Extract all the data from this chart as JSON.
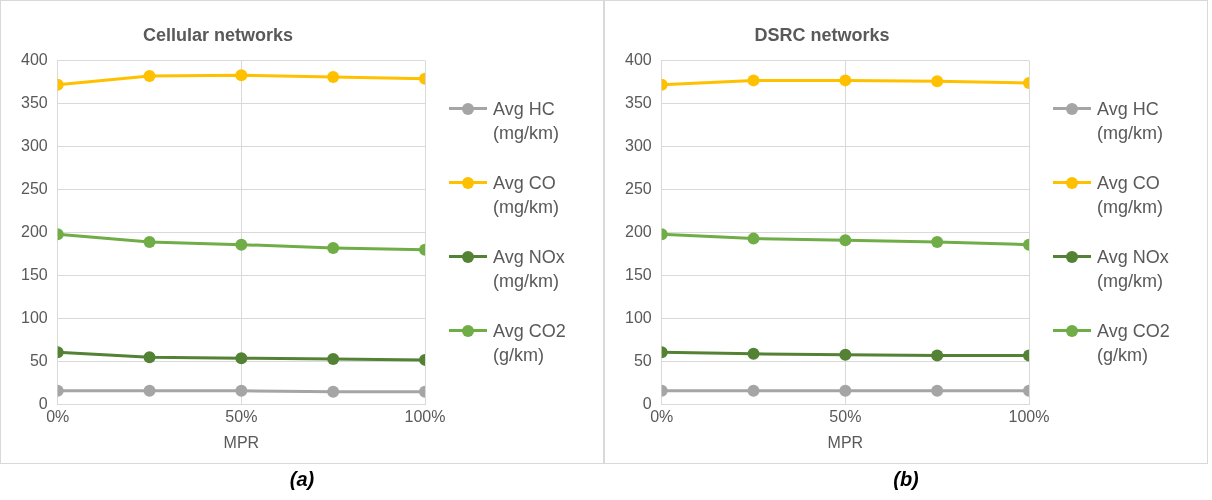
{
  "chart_data": [
    {
      "type": "line",
      "title": "Cellular networks",
      "xlabel": "MPR",
      "x": [
        0,
        25,
        50,
        75,
        100
      ],
      "xlim": [
        0,
        100
      ],
      "xticks": [
        {
          "value": 0,
          "label": "0%"
        },
        {
          "value": 50,
          "label": "50%"
        },
        {
          "value": 100,
          "label": "100%"
        }
      ],
      "ylim": [
        0,
        400
      ],
      "yticks": [
        0,
        50,
        100,
        150,
        200,
        250,
        300,
        350,
        400
      ],
      "grid": true,
      "legend": "right",
      "marker": "circle",
      "line_style": "solid",
      "series": [
        {
          "name": "Avg HC (mg/km)",
          "color": "#a5a5a5",
          "values": [
            16,
            16,
            16,
            15,
            15
          ]
        },
        {
          "name": "Avg CO (mg/km)",
          "color": "#ffc000",
          "values": [
            372,
            382,
            383,
            381,
            379
          ]
        },
        {
          "name": "Avg NOx (mg/km)",
          "color": "#548235",
          "values": [
            61,
            55,
            54,
            53,
            52
          ]
        },
        {
          "name": "Avg CO2 (g/km)",
          "color": "#70ad47",
          "values": [
            198,
            189,
            186,
            182,
            180
          ]
        }
      ],
      "annotations": [
        "(a)"
      ]
    },
    {
      "type": "line",
      "title": "DSRC networks",
      "xlabel": "MPR",
      "x": [
        0,
        25,
        50,
        75,
        100
      ],
      "xlim": [
        0,
        100
      ],
      "xticks": [
        {
          "value": 0,
          "label": "0%"
        },
        {
          "value": 50,
          "label": "50%"
        },
        {
          "value": 100,
          "label": "100%"
        }
      ],
      "ylim": [
        0,
        400
      ],
      "yticks": [
        0,
        50,
        100,
        150,
        200,
        250,
        300,
        350,
        400
      ],
      "grid": true,
      "legend": "right",
      "marker": "circle",
      "line_style": "solid",
      "series": [
        {
          "name": "Avg HC (mg/km)",
          "color": "#a5a5a5",
          "values": [
            16,
            16,
            16,
            16,
            16
          ]
        },
        {
          "name": "Avg CO (mg/km)",
          "color": "#ffc000",
          "values": [
            372,
            377,
            377,
            376,
            374
          ]
        },
        {
          "name": "Avg NOx (mg/km)",
          "color": "#548235",
          "values": [
            61,
            59,
            58,
            57,
            57
          ]
        },
        {
          "name": "Avg CO2 (g/km)",
          "color": "#70ad47",
          "values": [
            198,
            193,
            191,
            189,
            186
          ]
        }
      ],
      "annotations": [
        "(b)"
      ]
    }
  ]
}
